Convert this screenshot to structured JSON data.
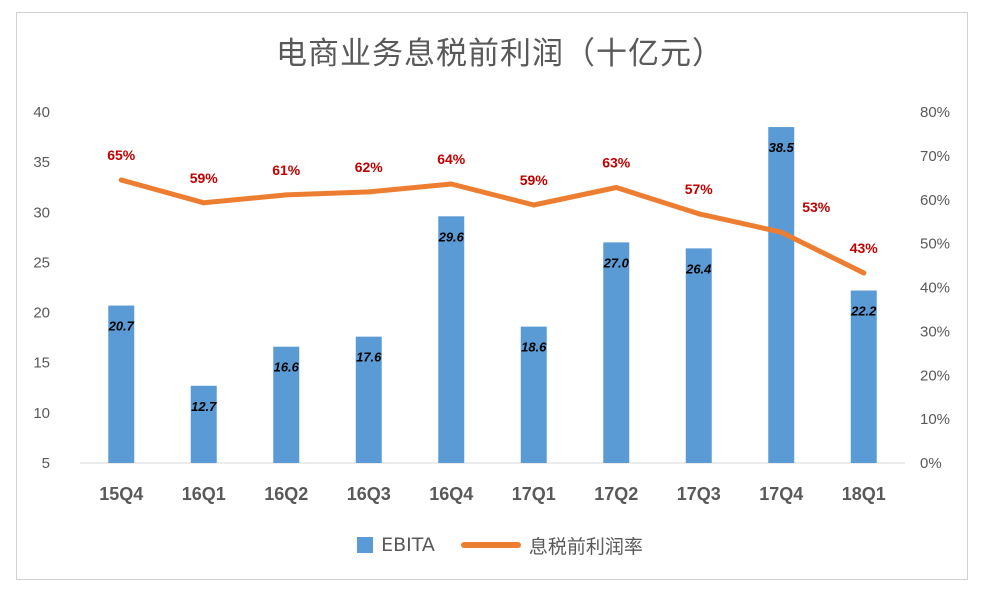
{
  "title": "电商业务息税前利润（十亿元）",
  "chart_data": {
    "type": "bar",
    "categories": [
      "15Q4",
      "16Q1",
      "16Q2",
      "16Q3",
      "16Q4",
      "17Q1",
      "17Q2",
      "17Q3",
      "17Q4",
      "18Q1"
    ],
    "series": [
      {
        "name": "EBITA",
        "type": "bar",
        "axis": "left",
        "color": "#5b9bd5",
        "values": [
          20.7,
          12.7,
          16.6,
          17.6,
          29.6,
          18.6,
          27.0,
          26.4,
          38.5,
          22.2
        ],
        "labels": [
          "20.7",
          "12.7",
          "16.6",
          "17.6",
          "29.6",
          "18.6",
          "27.0",
          "26.4",
          "38.5",
          "22.2"
        ]
      },
      {
        "name": "息税前利润率",
        "type": "line",
        "axis": "right",
        "color": "#ed7d31",
        "values": [
          0.645,
          0.593,
          0.611,
          0.618,
          0.636,
          0.588,
          0.628,
          0.568,
          0.526,
          0.433
        ],
        "labels": [
          "65%",
          "59%",
          "61%",
          "62%",
          "64%",
          "59%",
          "63%",
          "57%",
          "53%",
          "43%"
        ]
      }
    ],
    "y_left": {
      "min": 5,
      "max": 40,
      "ticks": [
        "5",
        "10",
        "15",
        "20",
        "25",
        "30",
        "35",
        "40"
      ]
    },
    "y_right": {
      "min": 0,
      "max": 0.8,
      "ticks": [
        "0%",
        "10%",
        "20%",
        "30%",
        "40%",
        "50%",
        "60%",
        "70%",
        "80%"
      ]
    },
    "grid": false,
    "legend_position": "bottom",
    "label_color": "#c00000"
  }
}
